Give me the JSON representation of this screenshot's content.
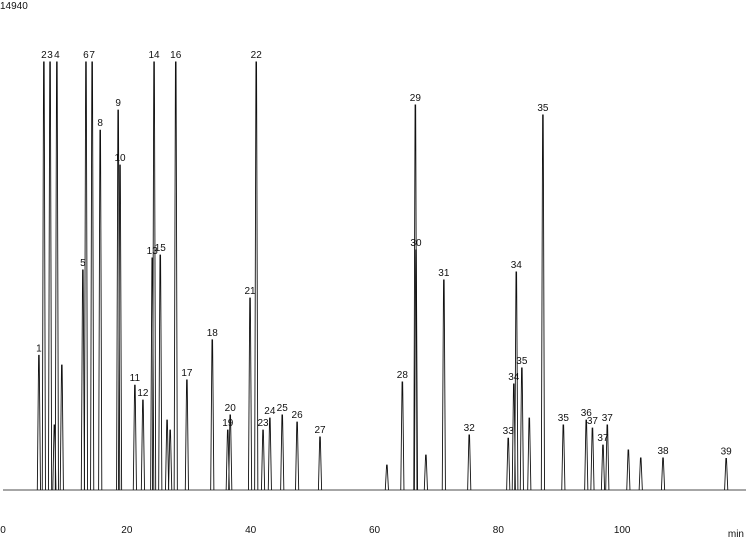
{
  "chart_data": {
    "type": "chromatogram",
    "x_label": "min",
    "xlim": [
      0,
      120
    ],
    "xticks": [
      0,
      20,
      40,
      60,
      80,
      100
    ],
    "ylim": [
      0,
      14940
    ],
    "yticks": [
      14940
    ],
    "color": "#111111",
    "x": [
      5.8,
      6.6,
      7.6,
      8.3,
      8.7,
      9.5,
      12.9,
      13.4,
      14.4,
      15.7,
      18.6,
      18.9,
      21.3,
      22.6,
      24.1,
      24.4,
      25.4,
      26.5,
      27.0,
      27.9,
      29.7,
      33.8,
      36.3,
      36.7,
      39.9,
      40.9,
      42.0,
      43.1,
      45.1,
      47.5,
      51.2,
      62.0,
      64.5,
      66.6,
      66.7,
      68.3,
      71.2,
      75.3,
      81.6,
      82.5,
      82.9,
      83.8,
      85.0,
      87.2,
      90.5,
      94.2,
      95.2,
      96.9,
      97.6,
      101.0,
      103.0,
      106.6,
      116.8
    ],
    "values": [
      4700,
      14940,
      14940,
      2270,
      14940,
      4360,
      7680,
      14940,
      14940,
      12560,
      13260,
      11340,
      3660,
      3140,
      8100,
      14940,
      8200,
      2440,
      2090,
      14940,
      3840,
      5240,
      2090,
      2620,
      6700,
      14940,
      2090,
      2510,
      2620,
      2370,
      1850,
      870,
      3770,
      13440,
      8380,
      1220,
      7330,
      1920,
      1810,
      3700,
      7610,
      4260,
      2510,
      13090,
      2270,
      2440,
      2160,
      1570,
      2270,
      1400,
      1120,
      1120,
      1100
    ],
    "labels": [
      "1",
      "2",
      "3",
      null,
      "4",
      null,
      "5",
      "6",
      "7",
      "8",
      "9",
      "10",
      "11",
      "12",
      "13",
      "14",
      "15",
      null,
      null,
      "16",
      "17",
      "18",
      "19",
      "20",
      "21",
      "22",
      "23",
      "24",
      "25",
      "26",
      "27",
      null,
      "28",
      "29",
      "30",
      null,
      "31",
      "32",
      "33",
      "34",
      "34",
      "35",
      null,
      "35",
      "35",
      "36",
      "37",
      "37",
      "37",
      null,
      null,
      "38",
      "39"
    ]
  }
}
